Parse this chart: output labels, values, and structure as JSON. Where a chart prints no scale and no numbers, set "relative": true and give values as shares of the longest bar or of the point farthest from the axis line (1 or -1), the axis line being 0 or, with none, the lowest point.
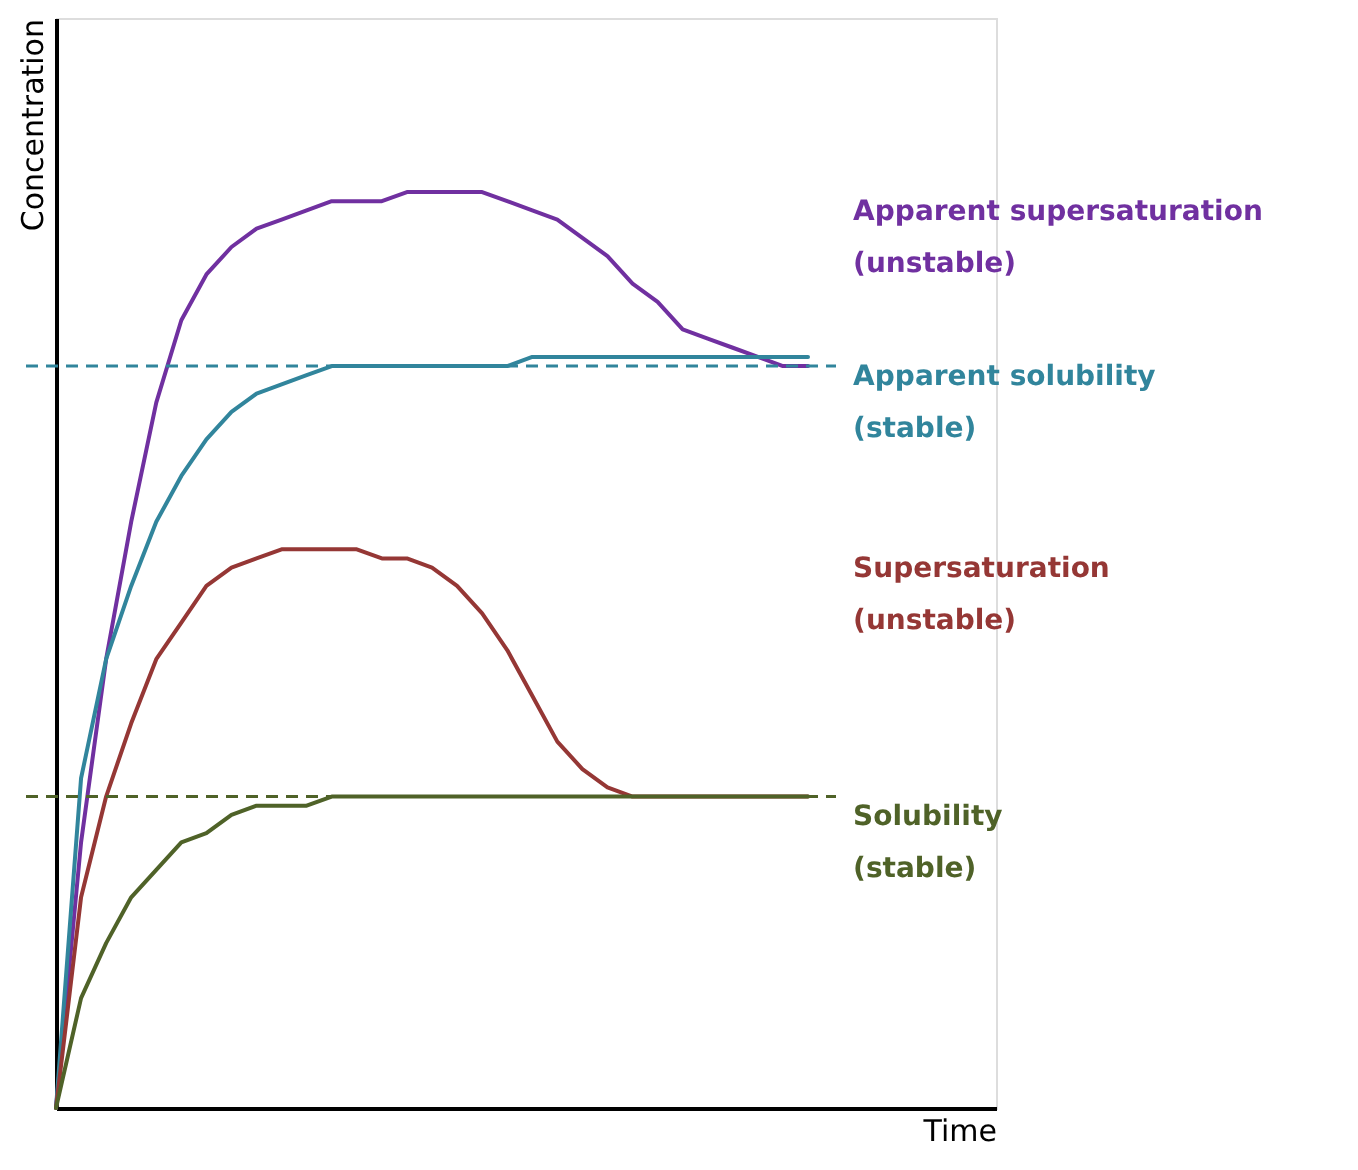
{
  "chart_data": {
    "type": "line",
    "relative": true,
    "xlabel": "Time",
    "ylabel": "Concentration",
    "grid": false,
    "legend": false,
    "marker": "none",
    "line_style": "solid",
    "categories": [
      null,
      null,
      null,
      null,
      null,
      null,
      null,
      null,
      null,
      null,
      null,
      null,
      null,
      null,
      null,
      null,
      null,
      null,
      null,
      null,
      null,
      null,
      null,
      null,
      null,
      null,
      null,
      null,
      null,
      null,
      null
    ],
    "series": [
      {
        "name": "Apparent supersaturation (unstable)",
        "color": "#7030a0",
        "values": [
          0,
          0.29,
          0.49,
          0.64,
          0.77,
          0.86,
          0.91,
          0.94,
          0.96,
          0.97,
          0.98,
          0.99,
          0.99,
          0.99,
          1.0,
          1.0,
          1.0,
          1.0,
          0.99,
          0.98,
          0.97,
          0.95,
          0.93,
          0.9,
          0.88,
          0.85,
          0.84,
          0.83,
          0.82,
          0.81,
          0.81
        ]
      },
      {
        "name": "Apparent solubility (stable)",
        "color": "#31859c",
        "values": [
          0,
          0.36,
          0.49,
          0.57,
          0.64,
          0.69,
          0.73,
          0.76,
          0.78,
          0.79,
          0.8,
          0.81,
          0.81,
          0.81,
          0.81,
          0.81,
          0.81,
          0.81,
          0.81,
          0.82,
          0.82,
          0.82,
          0.82,
          0.82,
          0.82,
          0.82,
          0.82,
          0.82,
          0.82,
          0.82,
          0.82
        ]
      },
      {
        "name": "Supersaturation (unstable)",
        "color": "#953735",
        "values": [
          0,
          0.23,
          0.34,
          0.42,
          0.49,
          0.53,
          0.57,
          0.59,
          0.6,
          0.61,
          0.61,
          0.61,
          0.61,
          0.6,
          0.6,
          0.59,
          0.57,
          0.54,
          0.5,
          0.45,
          0.4,
          0.37,
          0.35,
          0.34,
          0.34,
          0.34,
          0.34,
          0.34,
          0.34,
          0.34,
          0.34
        ]
      },
      {
        "name": "Solubility (stable)",
        "color": "#4f6228",
        "values": [
          0,
          0.12,
          0.18,
          0.23,
          0.26,
          0.29,
          0.3,
          0.32,
          0.33,
          0.33,
          0.33,
          0.34,
          0.34,
          0.34,
          0.34,
          0.34,
          0.34,
          0.34,
          0.34,
          0.34,
          0.34,
          0.34,
          0.34,
          0.34,
          0.34,
          0.34,
          0.34,
          0.34,
          0.34,
          0.34,
          0.34
        ]
      }
    ],
    "ref_lines": [
      {
        "axis": "y",
        "value": 0.81,
        "color": "#31859c",
        "line_style": "dashed"
      },
      {
        "axis": "y",
        "value": 0.34,
        "color": "#4f6228",
        "line_style": "dashed"
      }
    ]
  }
}
